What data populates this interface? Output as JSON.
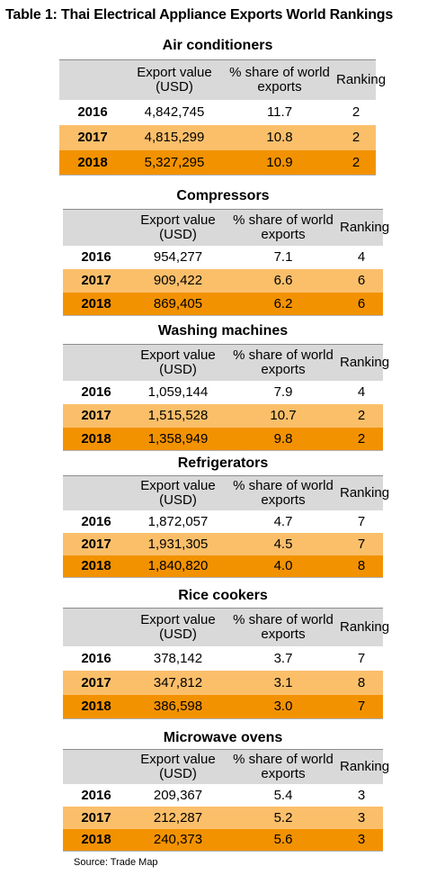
{
  "title": "Table 1: Thai Electrical Appliance Exports World Rankings",
  "columns": {
    "year": "",
    "export_value": "Export value (USD)",
    "share": "% share of world exports",
    "ranking": "Ranking"
  },
  "sections": [
    {
      "name": "Air conditioners",
      "rows": [
        {
          "year": "2016",
          "value": "4,842,745",
          "share": "11.7",
          "rank": "2"
        },
        {
          "year": "2017",
          "value": "4,815,299",
          "share": "10.8",
          "rank": "2"
        },
        {
          "year": "2018",
          "value": "5,327,295",
          "share": "10.9",
          "rank": "2"
        }
      ]
    },
    {
      "name": "Compressors",
      "rows": [
        {
          "year": "2016",
          "value": "954,277",
          "share": "7.1",
          "rank": "4"
        },
        {
          "year": "2017",
          "value": "909,422",
          "share": "6.6",
          "rank": "6"
        },
        {
          "year": "2018",
          "value": "869,405",
          "share": "6.2",
          "rank": "6"
        }
      ]
    },
    {
      "name": "Washing machines",
      "rows": [
        {
          "year": "2016",
          "value": "1,059,144",
          "share": "7.9",
          "rank": "4"
        },
        {
          "year": "2017",
          "value": "1,515,528",
          "share": "10.7",
          "rank": "2"
        },
        {
          "year": "2018",
          "value": "1,358,949",
          "share": "9.8",
          "rank": "2"
        }
      ]
    },
    {
      "name": "Refrigerators",
      "rows": [
        {
          "year": "2016",
          "value": "1,872,057",
          "share": "4.7",
          "rank": "7"
        },
        {
          "year": "2017",
          "value": "1,931,305",
          "share": "4.5",
          "rank": "7"
        },
        {
          "year": "2018",
          "value": "1,840,820",
          "share": "4.0",
          "rank": "8"
        }
      ]
    },
    {
      "name": "Rice cookers",
      "rows": [
        {
          "year": "2016",
          "value": "378,142",
          "share": "3.7",
          "rank": "7"
        },
        {
          "year": "2017",
          "value": "347,812",
          "share": "3.1",
          "rank": "8"
        },
        {
          "year": "2018",
          "value": "386,598",
          "share": "3.0",
          "rank": "7"
        }
      ]
    },
    {
      "name": "Microwave ovens",
      "rows": [
        {
          "year": "2016",
          "value": "209,367",
          "share": "5.4",
          "rank": "3"
        },
        {
          "year": "2017",
          "value": "212,287",
          "share": "5.2",
          "rank": "3"
        },
        {
          "year": "2018",
          "value": "240,373",
          "share": "5.6",
          "rank": "3"
        }
      ]
    }
  ],
  "source": "Source: Trade Map"
}
